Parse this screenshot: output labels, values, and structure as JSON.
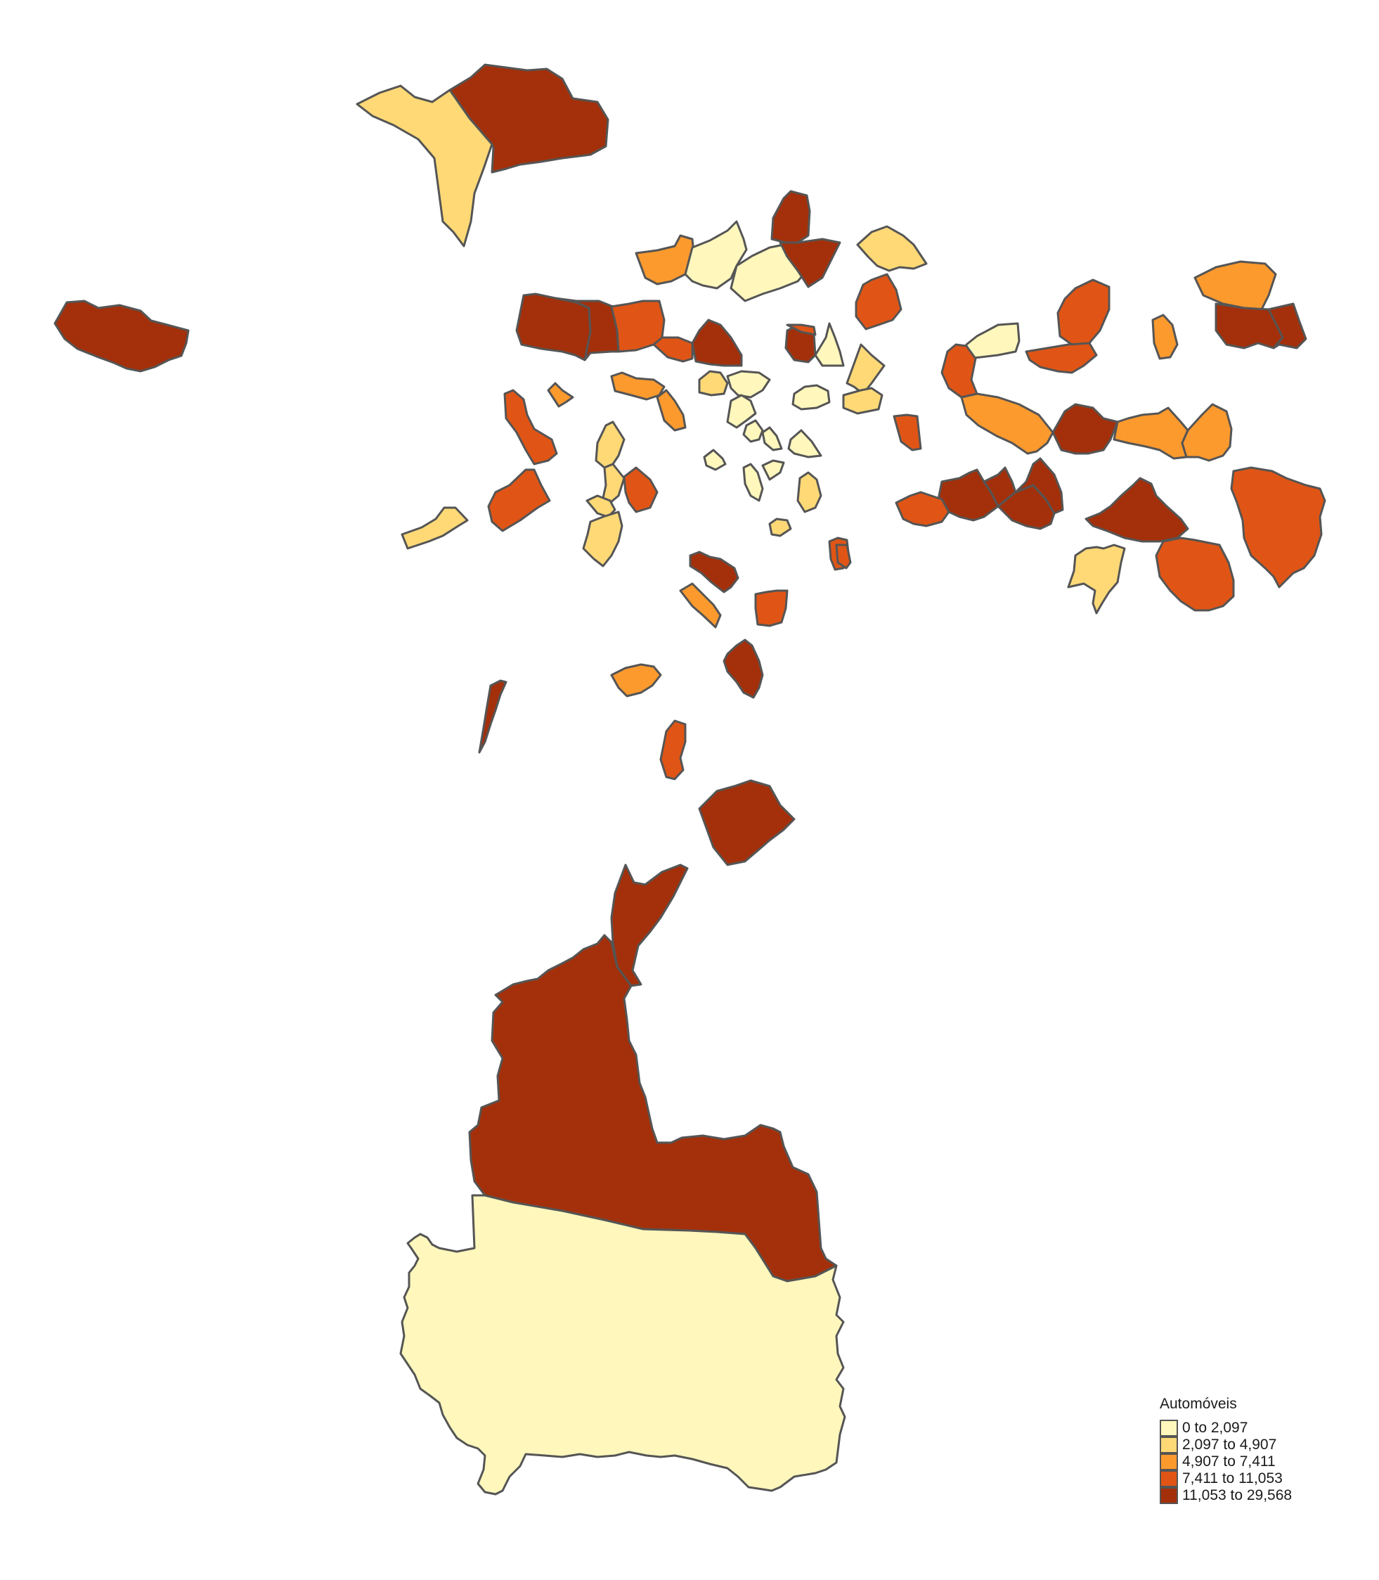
{
  "map": {
    "variable": "Automóveis",
    "class_colors": [
      "#FFF7BC",
      "#FED976",
      "#FD9A2E",
      "#E05515",
      "#A3300A"
    ],
    "outline_color": "#555555",
    "region_classes": {
      "northwest_pair_west": 1,
      "northwest_pair_east": 4,
      "far_west": 4,
      "southern_large": 0,
      "southern_band": 4,
      "southern_finger": 4,
      "southern_block": 4
    }
  },
  "legend": {
    "title": "Automóveis",
    "items": [
      {
        "label": "0 to 2,097",
        "color": "#FFF7BC"
      },
      {
        "label": "2,097 to 4,907",
        "color": "#FED976"
      },
      {
        "label": "4,907 to 7,411",
        "color": "#FD9A2E"
      },
      {
        "label": "7,411 to 11,053",
        "color": "#E05515"
      },
      {
        "label": "11,053 to 29,568",
        "color": "#A3300A"
      }
    ]
  }
}
